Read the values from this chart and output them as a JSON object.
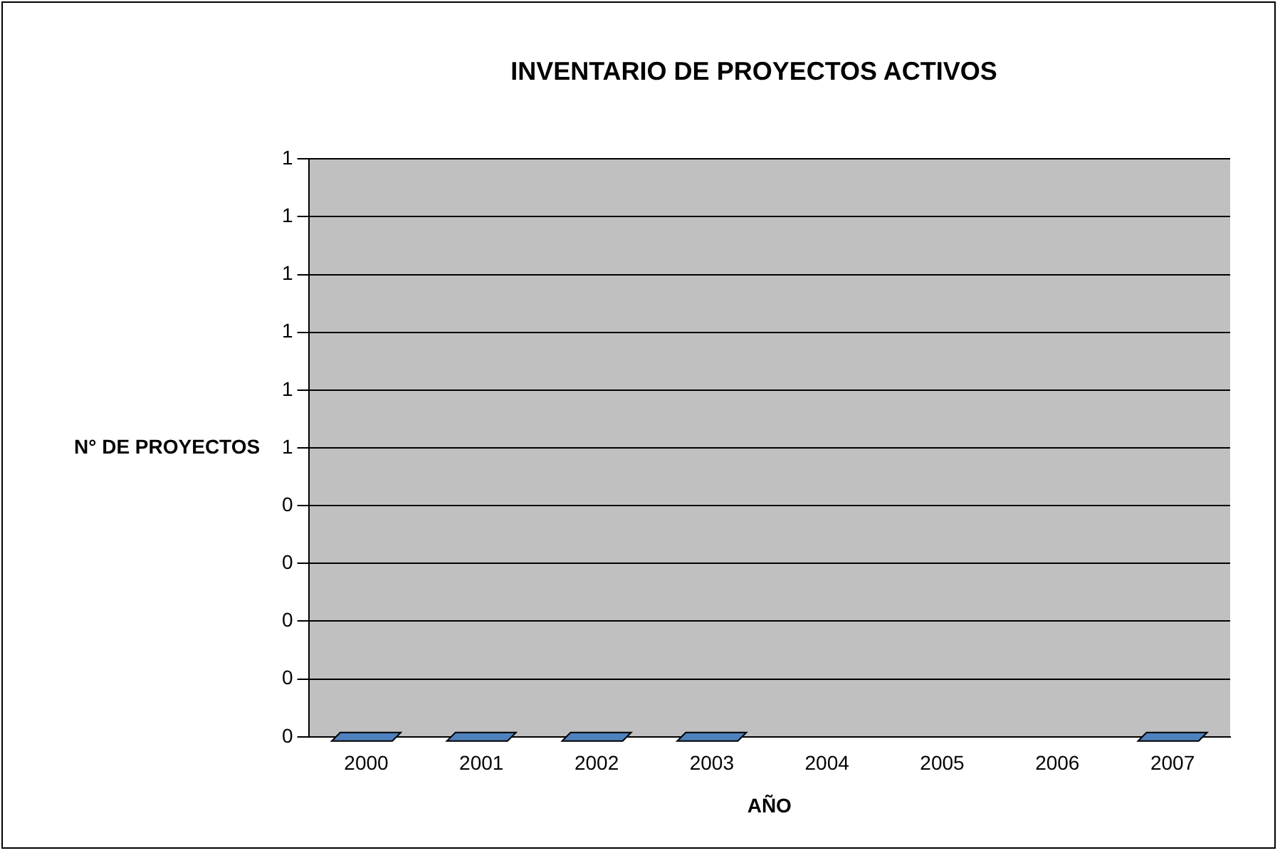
{
  "chart_data": {
    "type": "bar",
    "title": "INVENTARIO DE PROYECTOS ACTIVOS",
    "xlabel": "AÑO",
    "ylabel": "N° DE PROYECTOS",
    "categories": [
      "2000",
      "2001",
      "2002",
      "2003",
      "2004",
      "2005",
      "2006",
      "2007"
    ],
    "values": [
      0,
      0,
      0,
      0,
      null,
      null,
      null,
      0
    ],
    "color": "#4f81bd",
    "ylim": [
      0,
      1
    ],
    "yticks": [
      {
        "value": 0,
        "label": "0"
      },
      {
        "value": 0.1,
        "label": "0"
      },
      {
        "value": 0.2,
        "label": "0"
      },
      {
        "value": 0.3,
        "label": "0"
      },
      {
        "value": 0.4,
        "label": "0"
      },
      {
        "value": 0.5,
        "label": "1"
      },
      {
        "value": 0.6,
        "label": "1"
      },
      {
        "value": 0.7,
        "label": "1"
      },
      {
        "value": 0.8,
        "label": "1"
      },
      {
        "value": 0.9,
        "label": "1"
      },
      {
        "value": 1,
        "label": "1"
      }
    ],
    "grid": "y",
    "legend": false
  }
}
